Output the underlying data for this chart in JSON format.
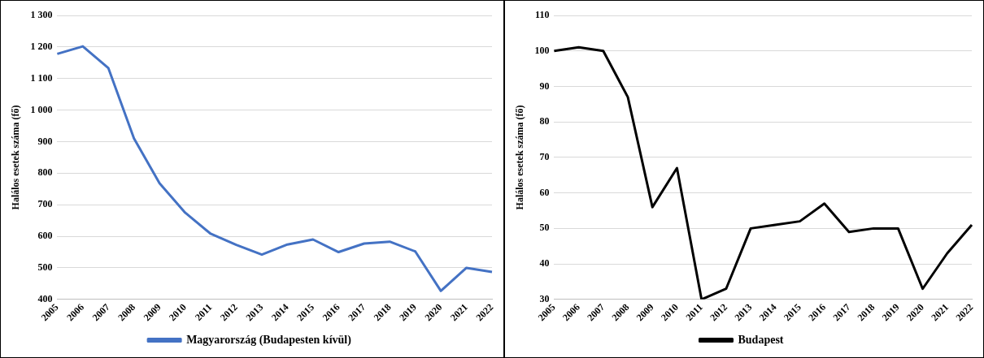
{
  "chart_data": [
    {
      "type": "line",
      "ylabel": "Halálos esetek száma (fő)",
      "categories": [
        "2005",
        "2006",
        "2007",
        "2008",
        "2009",
        "2010",
        "2011",
        "2012",
        "2013",
        "2014",
        "2015",
        "2016",
        "2017",
        "2018",
        "2019",
        "2020",
        "2021",
        "2022"
      ],
      "series": [
        {
          "name": "Magyarország (Budapesten kívül)",
          "color": "#4472c4",
          "values": [
            1178,
            1202,
            1133,
            910,
            768,
            675,
            608,
            573,
            542,
            574,
            590,
            550,
            577,
            583,
            552,
            427,
            500,
            487
          ]
        }
      ],
      "ylim": [
        400,
        1300
      ],
      "yticks": [
        400,
        500,
        600,
        700,
        800,
        900,
        {
          "value": 1000,
          "label": "1 000"
        },
        {
          "value": 1100,
          "label": "1 100"
        },
        {
          "value": 1200,
          "label": "1 200"
        },
        {
          "value": 1300,
          "label": "1 300"
        }
      ],
      "grid": "y",
      "legend": "bottom",
      "marker": "none",
      "line_style": "solid"
    },
    {
      "type": "line",
      "ylabel": "Halálos esetek száma (fő)",
      "categories": [
        "2005",
        "2006",
        "2007",
        "2008",
        "2009",
        "2010",
        "2011",
        "2012",
        "2013",
        "2014",
        "2015",
        "2016",
        "2017",
        "2018",
        "2019",
        "2020",
        "2021",
        "2022"
      ],
      "series": [
        {
          "name": "Budapest",
          "color": "#000000",
          "values": [
            100,
            101,
            100,
            87,
            56,
            67,
            30,
            33,
            50,
            51,
            52,
            57,
            49,
            50,
            50,
            33,
            43,
            51
          ]
        }
      ],
      "ylim": [
        30,
        110
      ],
      "yticks": [
        30,
        40,
        50,
        60,
        70,
        80,
        90,
        100,
        110
      ],
      "grid": "y",
      "legend": "bottom",
      "marker": "none",
      "line_style": "solid"
    }
  ]
}
